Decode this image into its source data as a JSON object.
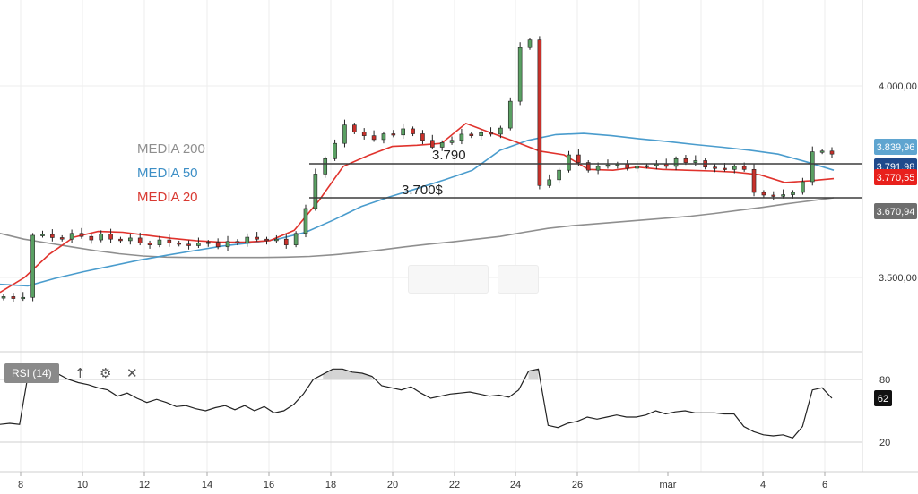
{
  "chart_data": [
    {
      "type": "candlestick",
      "x_ticks": [
        "8",
        "10",
        "12",
        "14",
        "16",
        "18",
        "20",
        "22",
        "24",
        "26",
        "mar",
        "4",
        "6"
      ],
      "y_ticks": [
        "4.000,00",
        "3.500,00"
      ],
      "ylim": [
        3420,
        4360
      ],
      "grid": true,
      "legend_position": "middle-left",
      "series": [
        {
          "name": "MEDIA 200",
          "color": "#8f8f8f",
          "values": [
            3615,
            3600,
            3590,
            3580,
            3570,
            3562,
            3556,
            3553,
            3552,
            3552,
            3552,
            3552,
            3553,
            3555,
            3559,
            3565,
            3572,
            3580,
            3587,
            3593,
            3600,
            3607,
            3618,
            3628,
            3635,
            3640,
            3645,
            3650,
            3655,
            3660,
            3667,
            3675,
            3683,
            3692,
            3700,
            3708
          ]
        },
        {
          "name": "MEDIA 50",
          "color": "#4a9ccd",
          "values": [
            3482,
            3478,
            3498,
            3515,
            3530,
            3545,
            3558,
            3570,
            3582,
            3590,
            3600,
            3618,
            3650,
            3685,
            3710,
            3732,
            3755,
            3780,
            3832,
            3858,
            3873,
            3876,
            3870,
            3862,
            3855,
            3847,
            3840,
            3832,
            3822,
            3802,
            3780
          ]
        },
        {
          "name": "MEDIA 20",
          "color": "#e0332d",
          "values": [
            3461,
            3500,
            3560,
            3605,
            3620,
            3618,
            3610,
            3602,
            3596,
            3592,
            3592,
            3596,
            3623,
            3700,
            3790,
            3818,
            3842,
            3845,
            3850,
            3902,
            3878,
            3855,
            3830,
            3820,
            3782,
            3780,
            3788,
            3782,
            3780,
            3778,
            3775,
            3768,
            3748,
            3752,
            3758
          ]
        }
      ],
      "ohlc_close": [
        3450,
        3445,
        3448,
        3610,
        3612,
        3604,
        3600,
        3615,
        3607,
        3598,
        3613,
        3600,
        3596,
        3603,
        3590,
        3585,
        3598,
        3590,
        3587,
        3583,
        3590,
        3592,
        3580,
        3594,
        3590,
        3605,
        3600,
        3596,
        3600,
        3585,
        3615,
        3680,
        3770,
        3810,
        3850,
        3898,
        3880,
        3870,
        3860,
        3875,
        3872,
        3888,
        3875,
        3858,
        3840,
        3852,
        3858,
        3874,
        3870,
        3878,
        3874,
        3890,
        3960,
        4100,
        4120,
        3740,
        3755,
        3780,
        3820,
        3800,
        3780,
        3790,
        3794,
        3796,
        3785,
        3790,
        3792,
        3796,
        3790,
        3810,
        3800,
        3805,
        3788,
        3785,
        3782,
        3790,
        3782,
        3722,
        3715,
        3712,
        3716,
        3722,
        3750,
        3828,
        3830,
        3822
      ],
      "horizontal_levels": [
        {
          "label": "3.790",
          "value": 3790
        },
        {
          "label": "3.700$",
          "value": 3700
        }
      ],
      "price_badges": [
        {
          "value_text": "3.839,96",
          "color": "#5fa5d0"
        },
        {
          "value_text": "3.791,98",
          "color": "#1f4a8c"
        },
        {
          "value_text": "3.770,55",
          "color": "#e8201c"
        },
        {
          "value_text": "3.670,94",
          "color": "#6e6e6e"
        }
      ]
    },
    {
      "type": "line",
      "title": "RSI (14)",
      "y_ticks": [
        "80",
        "20"
      ],
      "ylim": [
        0,
        100
      ],
      "series": [
        {
          "name": "RSI (14)",
          "color": "#222222",
          "values": [
            37,
            38,
            37,
            92,
            91,
            87,
            85,
            80,
            77,
            75,
            72,
            70,
            64,
            67,
            62,
            58,
            61,
            58,
            54,
            55,
            52,
            50,
            53,
            55,
            51,
            55,
            50,
            54,
            48,
            50,
            56,
            66,
            80,
            85,
            90,
            90,
            87,
            86,
            83,
            74,
            72,
            70,
            73,
            67,
            62,
            64,
            66,
            67,
            68,
            66,
            64,
            65,
            63,
            70,
            88,
            90,
            36,
            34,
            38,
            40,
            44,
            42,
            44,
            46,
            44,
            44,
            46,
            50,
            47,
            49,
            50,
            48,
            48,
            48,
            47,
            47,
            35,
            30,
            27,
            26,
            27,
            24,
            35,
            70,
            72,
            62
          ]
        }
      ],
      "current_value": "62"
    }
  ],
  "panel": {
    "rsi_label": "RSI (14)",
    "up_icon": "arrow-up-icon",
    "settings_icon": "gear-icon",
    "close_icon": "close-icon"
  },
  "annotations": {
    "legend_200": "MEDIA 200",
    "legend_50": "MEDIA 50",
    "legend_20": "MEDIA 20",
    "level_top": "3.790",
    "level_bottom": "3.700$"
  }
}
